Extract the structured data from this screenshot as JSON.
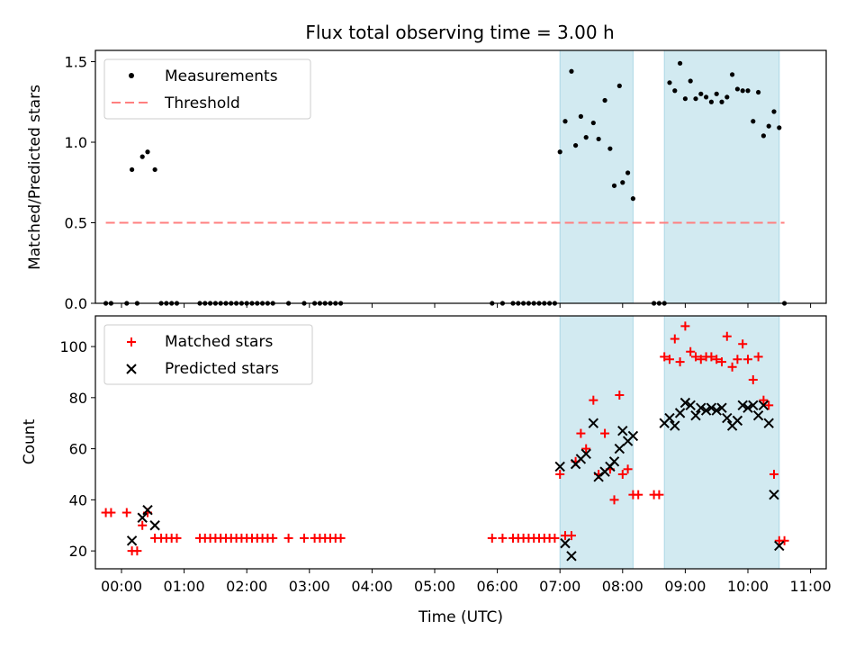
{
  "title": "Flux total observing time = 3.00 h",
  "xlabel": "Time (UTC)",
  "time_ticks": [
    "00:00",
    "01:00",
    "02:00",
    "03:00",
    "04:00",
    "05:00",
    "06:00",
    "07:00",
    "08:00",
    "09:00",
    "10:00",
    "11:00"
  ],
  "shaded_intervals": [
    [
      "07:00",
      "08:10"
    ],
    [
      "08:40",
      "10:30"
    ]
  ],
  "colors": {
    "matched": "#ff0000",
    "predicted": "#000000",
    "threshold": "#ff7f7f",
    "shade": "#add8e6"
  },
  "chart_data": [
    {
      "type": "scatter",
      "ylabel": "Matched/Predicted stars",
      "ylim": [
        0,
        1.57
      ],
      "yticks": [
        "0.0",
        "0.5",
        "1.0",
        "1.5"
      ],
      "legend": "top-left",
      "threshold": {
        "name": "Threshold",
        "y": 0.5,
        "x_start": "23:45",
        "x_end": "10:35"
      },
      "series": [
        {
          "name": "Measurements",
          "points": [
            [
              "23:45",
              0
            ],
            [
              "23:50",
              0
            ],
            [
              "00:05",
              0
            ],
            [
              "00:10",
              0.83
            ],
            [
              "00:15",
              0
            ],
            [
              "00:20",
              0.91
            ],
            [
              "00:25",
              0.94
            ],
            [
              "00:32",
              0.83
            ],
            [
              "00:38",
              0
            ],
            [
              "00:43",
              0
            ],
            [
              "00:48",
              0
            ],
            [
              "00:53",
              0
            ],
            [
              "01:15",
              0
            ],
            [
              "01:20",
              0
            ],
            [
              "01:25",
              0
            ],
            [
              "01:30",
              0
            ],
            [
              "01:35",
              0
            ],
            [
              "01:40",
              0
            ],
            [
              "01:45",
              0
            ],
            [
              "01:50",
              0
            ],
            [
              "01:55",
              0
            ],
            [
              "02:00",
              0
            ],
            [
              "02:05",
              0
            ],
            [
              "02:10",
              0
            ],
            [
              "02:15",
              0
            ],
            [
              "02:20",
              0
            ],
            [
              "02:25",
              0
            ],
            [
              "02:40",
              0
            ],
            [
              "02:55",
              0
            ],
            [
              "03:05",
              0
            ],
            [
              "03:10",
              0
            ],
            [
              "03:15",
              0
            ],
            [
              "03:20",
              0
            ],
            [
              "03:25",
              0
            ],
            [
              "03:30",
              0
            ],
            [
              "05:55",
              0
            ],
            [
              "06:05",
              0
            ],
            [
              "06:15",
              0
            ],
            [
              "06:20",
              0
            ],
            [
              "06:25",
              0
            ],
            [
              "06:30",
              0
            ],
            [
              "06:35",
              0
            ],
            [
              "06:40",
              0
            ],
            [
              "06:45",
              0
            ],
            [
              "06:50",
              0
            ],
            [
              "06:55",
              0
            ],
            [
              "07:00",
              0.94
            ],
            [
              "07:05",
              1.13
            ],
            [
              "07:11",
              1.44
            ],
            [
              "07:15",
              0.98
            ],
            [
              "07:20",
              1.16
            ],
            [
              "07:25",
              1.03
            ],
            [
              "07:32",
              1.12
            ],
            [
              "07:37",
              1.02
            ],
            [
              "07:43",
              1.26
            ],
            [
              "07:48",
              0.96
            ],
            [
              "07:52",
              0.73
            ],
            [
              "07:57",
              1.35
            ],
            [
              "08:00",
              0.75
            ],
            [
              "08:05",
              0.81
            ],
            [
              "08:10",
              0.65
            ],
            [
              "08:30",
              0
            ],
            [
              "08:35",
              0
            ],
            [
              "08:40",
              0
            ],
            [
              "08:45",
              1.37
            ],
            [
              "08:50",
              1.32
            ],
            [
              "08:55",
              1.49
            ],
            [
              "09:00",
              1.27
            ],
            [
              "09:05",
              1.38
            ],
            [
              "09:10",
              1.27
            ],
            [
              "09:15",
              1.3
            ],
            [
              "09:20",
              1.28
            ],
            [
              "09:25",
              1.25
            ],
            [
              "09:30",
              1.3
            ],
            [
              "09:35",
              1.25
            ],
            [
              "09:40",
              1.28
            ],
            [
              "09:45",
              1.42
            ],
            [
              "09:50",
              1.33
            ],
            [
              "09:55",
              1.32
            ],
            [
              "10:00",
              1.32
            ],
            [
              "10:05",
              1.13
            ],
            [
              "10:10",
              1.31
            ],
            [
              "10:15",
              1.04
            ],
            [
              "10:20",
              1.1
            ],
            [
              "10:25",
              1.19
            ],
            [
              "10:30",
              1.09
            ],
            [
              "10:35",
              0
            ]
          ]
        }
      ]
    },
    {
      "type": "scatter",
      "ylabel": "Count",
      "ylim": [
        13,
        112
      ],
      "yticks": [
        "20",
        "40",
        "60",
        "80",
        "100"
      ],
      "legend": "top-left",
      "series": [
        {
          "name": "Matched stars",
          "marker": "plus",
          "points": [
            [
              "23:45",
              35
            ],
            [
              "23:50",
              35
            ],
            [
              "00:05",
              35
            ],
            [
              "00:10",
              20
            ],
            [
              "00:15",
              20
            ],
            [
              "00:20",
              30
            ],
            [
              "00:25",
              35
            ],
            [
              "00:32",
              25
            ],
            [
              "00:38",
              25
            ],
            [
              "00:43",
              25
            ],
            [
              "00:48",
              25
            ],
            [
              "00:53",
              25
            ],
            [
              "01:15",
              25
            ],
            [
              "01:20",
              25
            ],
            [
              "01:25",
              25
            ],
            [
              "01:30",
              25
            ],
            [
              "01:35",
              25
            ],
            [
              "01:40",
              25
            ],
            [
              "01:45",
              25
            ],
            [
              "01:50",
              25
            ],
            [
              "01:55",
              25
            ],
            [
              "02:00",
              25
            ],
            [
              "02:05",
              25
            ],
            [
              "02:10",
              25
            ],
            [
              "02:15",
              25
            ],
            [
              "02:20",
              25
            ],
            [
              "02:25",
              25
            ],
            [
              "02:40",
              25
            ],
            [
              "02:55",
              25
            ],
            [
              "03:05",
              25
            ],
            [
              "03:10",
              25
            ],
            [
              "03:15",
              25
            ],
            [
              "03:20",
              25
            ],
            [
              "03:25",
              25
            ],
            [
              "03:30",
              25
            ],
            [
              "05:55",
              25
            ],
            [
              "06:05",
              25
            ],
            [
              "06:15",
              25
            ],
            [
              "06:20",
              25
            ],
            [
              "06:25",
              25
            ],
            [
              "06:30",
              25
            ],
            [
              "06:35",
              25
            ],
            [
              "06:40",
              25
            ],
            [
              "06:45",
              25
            ],
            [
              "06:50",
              25
            ],
            [
              "06:55",
              25
            ],
            [
              "07:00",
              50
            ],
            [
              "07:05",
              26
            ],
            [
              "07:11",
              26
            ],
            [
              "07:15",
              55
            ],
            [
              "07:20",
              66
            ],
            [
              "07:25",
              60
            ],
            [
              "07:32",
              79
            ],
            [
              "07:37",
              50
            ],
            [
              "07:43",
              66
            ],
            [
              "07:48",
              52
            ],
            [
              "07:52",
              40
            ],
            [
              "07:57",
              81
            ],
            [
              "08:00",
              50
            ],
            [
              "08:05",
              52
            ],
            [
              "08:10",
              42
            ],
            [
              "08:15",
              42
            ],
            [
              "08:30",
              42
            ],
            [
              "08:35",
              42
            ],
            [
              "08:40",
              96
            ],
            [
              "08:45",
              95
            ],
            [
              "08:50",
              103
            ],
            [
              "08:55",
              94
            ],
            [
              "09:00",
              108
            ],
            [
              "09:05",
              98
            ],
            [
              "09:10",
              96
            ],
            [
              "09:15",
              95
            ],
            [
              "09:20",
              96
            ],
            [
              "09:25",
              96
            ],
            [
              "09:30",
              95
            ],
            [
              "09:35",
              94
            ],
            [
              "09:40",
              104
            ],
            [
              "09:45",
              92
            ],
            [
              "09:50",
              95
            ],
            [
              "09:55",
              101
            ],
            [
              "10:00",
              95
            ],
            [
              "10:05",
              87
            ],
            [
              "10:10",
              96
            ],
            [
              "10:15",
              79
            ],
            [
              "10:20",
              77
            ],
            [
              "10:25",
              50
            ],
            [
              "10:30",
              24
            ],
            [
              "10:35",
              24
            ]
          ]
        },
        {
          "name": "Predicted stars",
          "marker": "x",
          "points": [
            [
              "00:10",
              24
            ],
            [
              "00:20",
              33
            ],
            [
              "00:25",
              36
            ],
            [
              "00:32",
              30
            ],
            [
              "07:00",
              53
            ],
            [
              "07:05",
              23
            ],
            [
              "07:11",
              18
            ],
            [
              "07:15",
              54
            ],
            [
              "07:20",
              56
            ],
            [
              "07:25",
              58
            ],
            [
              "07:32",
              70
            ],
            [
              "07:37",
              49
            ],
            [
              "07:43",
              51
            ],
            [
              "07:48",
              53
            ],
            [
              "07:52",
              55
            ],
            [
              "07:57",
              60
            ],
            [
              "08:00",
              67
            ],
            [
              "08:05",
              63
            ],
            [
              "08:10",
              65
            ],
            [
              "08:40",
              70
            ],
            [
              "08:45",
              72
            ],
            [
              "08:50",
              69
            ],
            [
              "08:55",
              74
            ],
            [
              "09:00",
              78
            ],
            [
              "09:05",
              77
            ],
            [
              "09:10",
              73
            ],
            [
              "09:15",
              76
            ],
            [
              "09:20",
              75
            ],
            [
              "09:25",
              76
            ],
            [
              "09:30",
              75
            ],
            [
              "09:35",
              76
            ],
            [
              "09:40",
              72
            ],
            [
              "09:45",
              69
            ],
            [
              "09:50",
              71
            ],
            [
              "09:55",
              77
            ],
            [
              "10:00",
              76
            ],
            [
              "10:05",
              77
            ],
            [
              "10:10",
              73
            ],
            [
              "10:15",
              77
            ],
            [
              "10:20",
              70
            ],
            [
              "10:25",
              42
            ],
            [
              "10:30",
              22
            ]
          ]
        }
      ]
    }
  ]
}
